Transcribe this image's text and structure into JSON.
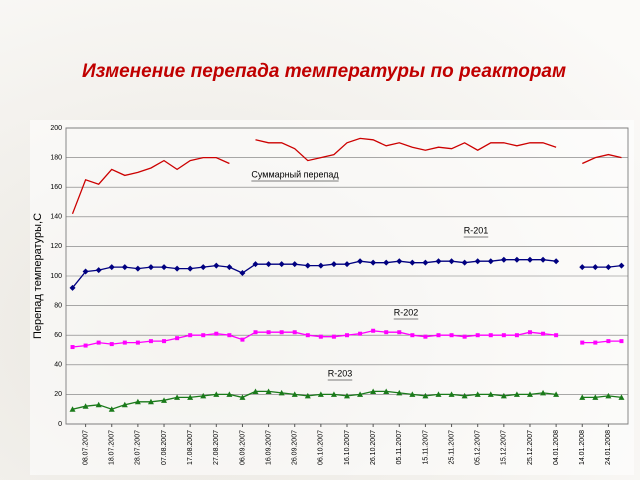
{
  "chart_data": {
    "type": "line",
    "title": "Изменение перепада температуры по реакторам",
    "y_label": "Перепад температуры,С",
    "categories": [
      null,
      "08.07.2007",
      null,
      "18.07.2007",
      null,
      "28.07.2007",
      null,
      "07.08.2007",
      null,
      "17.08.2007",
      null,
      "27.08.2007",
      null,
      "06.09.2007",
      null,
      "16.09.2007",
      null,
      "26.09.2007",
      null,
      "06.10.2007",
      null,
      "16.10.2007",
      null,
      "26.10.2007",
      null,
      "05.11.2007",
      null,
      "15.11.2007",
      null,
      "25.11.2007",
      null,
      "05.12.2007",
      null,
      "15.12.2007",
      null,
      "25.12.2007",
      null,
      "04.01.2008",
      null,
      "14.01.2008",
      null,
      "24.01.2008",
      null
    ],
    "series": [
      {
        "name": "Суммарный перепад",
        "color": "#cc0000",
        "marker": "none",
        "values": [
          142,
          165,
          162,
          172,
          168,
          170,
          173,
          178,
          172,
          178,
          180,
          180,
          176,
          null,
          192,
          190,
          190,
          186,
          178,
          180,
          182,
          190,
          193,
          192,
          188,
          190,
          187,
          185,
          187,
          186,
          190,
          185,
          190,
          190,
          188,
          190,
          190,
          187,
          null,
          176,
          180,
          182,
          180
        ]
      },
      {
        "name": "R-201",
        "color": "#000080",
        "marker": "diamond",
        "values": [
          92,
          103,
          104,
          106,
          106,
          105,
          106,
          106,
          105,
          105,
          106,
          107,
          106,
          102,
          108,
          108,
          108,
          108,
          107,
          107,
          108,
          108,
          110,
          109,
          109,
          110,
          109,
          109,
          110,
          110,
          109,
          110,
          110,
          111,
          111,
          111,
          111,
          110,
          null,
          106,
          106,
          106,
          107
        ]
      },
      {
        "name": "R-202",
        "color": "#ff00ff",
        "marker": "square",
        "values": [
          52,
          53,
          55,
          54,
          55,
          55,
          56,
          56,
          58,
          60,
          60,
          61,
          60,
          57,
          62,
          62,
          62,
          62,
          60,
          59,
          59,
          60,
          61,
          63,
          62,
          62,
          60,
          59,
          60,
          60,
          59,
          60,
          60,
          60,
          60,
          62,
          61,
          60,
          null,
          55,
          55,
          56,
          56
        ]
      },
      {
        "name": "R-203",
        "color": "#1a7a1a",
        "marker": "triangle",
        "values": [
          10,
          12,
          13,
          10,
          13,
          15,
          15,
          16,
          18,
          18,
          19,
          20,
          20,
          18,
          22,
          22,
          21,
          20,
          19,
          20,
          20,
          19,
          20,
          22,
          22,
          21,
          20,
          19,
          20,
          20,
          19,
          20,
          20,
          19,
          20,
          20,
          21,
          20,
          null,
          18,
          18,
          19,
          18
        ]
      }
    ],
    "ylim": [
      0,
      200
    ],
    "yticks": [
      0,
      20,
      40,
      60,
      80,
      100,
      120,
      140,
      160,
      180,
      200
    ],
    "grid": true
  }
}
